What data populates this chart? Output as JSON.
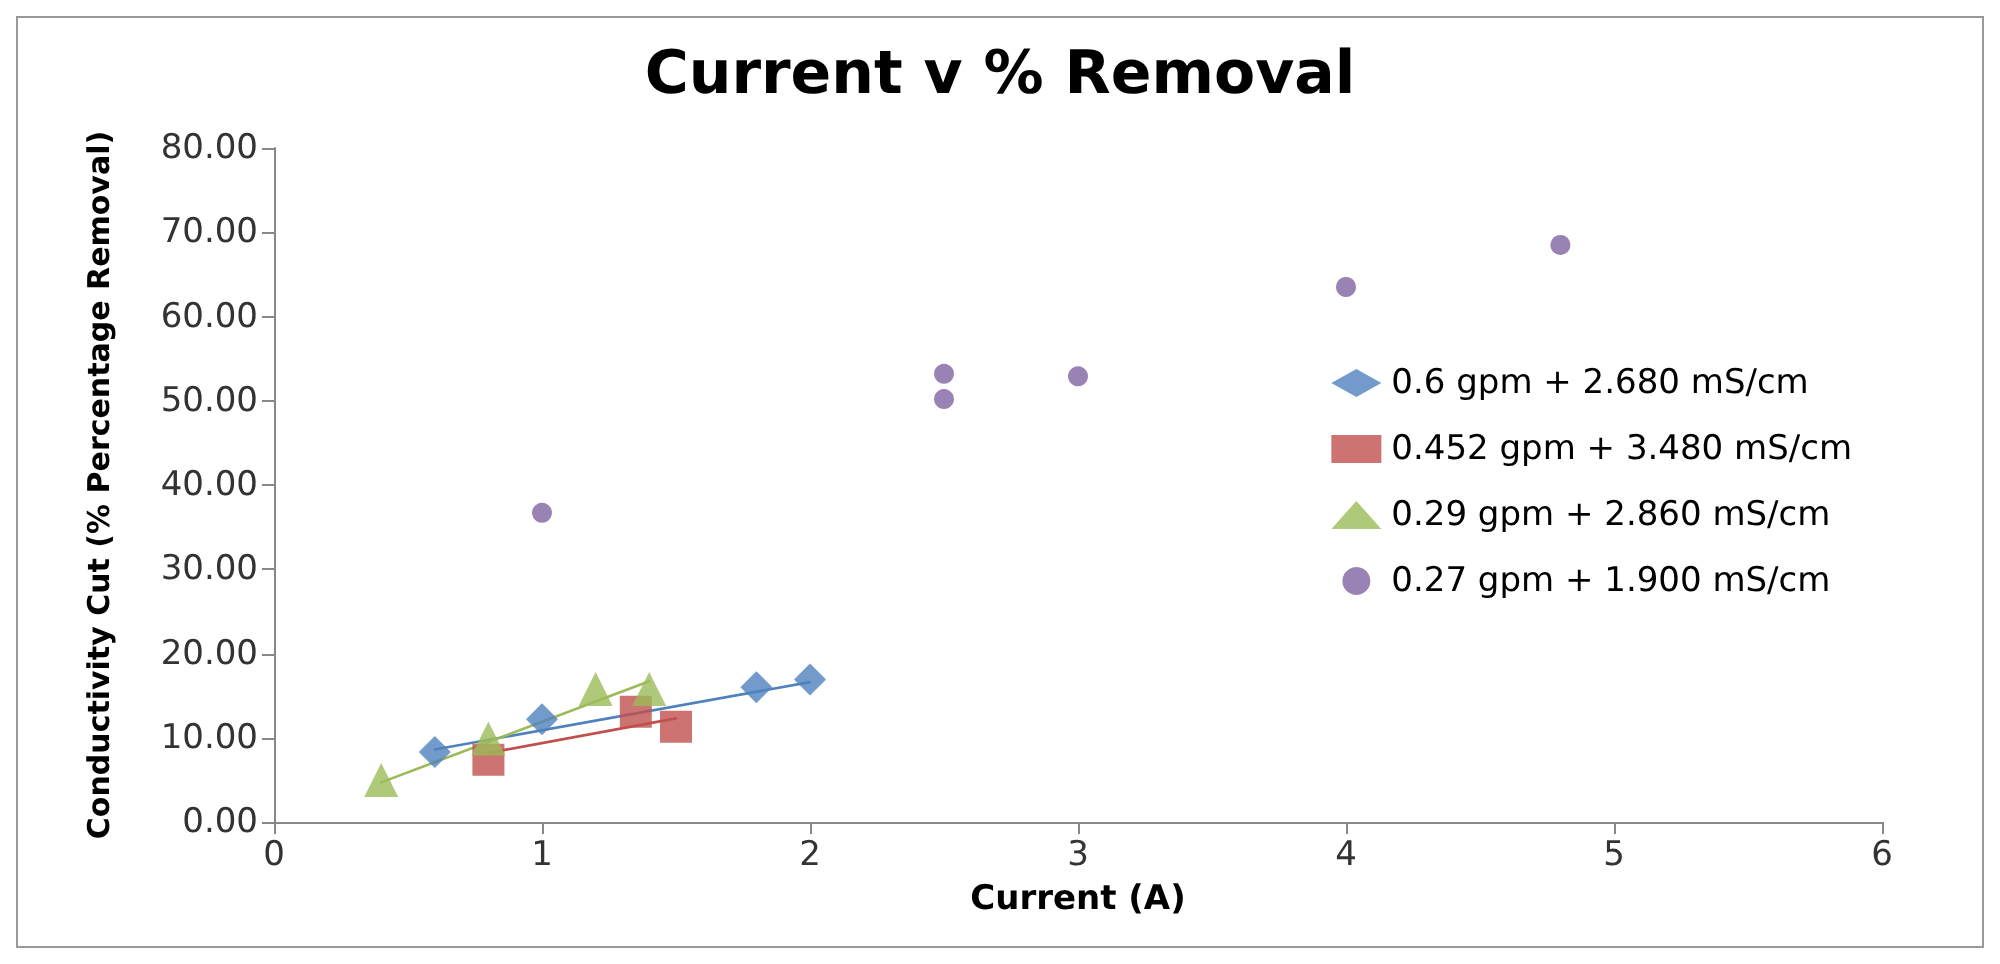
{
  "chart_data": {
    "type": "scatter",
    "title": "Current v % Removal",
    "xlabel": "Current (A)",
    "ylabel": "Conductivity Cut (% Percentage Removal)",
    "xlim": [
      0,
      6
    ],
    "xticks": [
      0,
      1,
      2,
      3,
      4,
      5,
      6
    ],
    "ylim": [
      0,
      80
    ],
    "yticks": [
      {
        "value": 0,
        "label": "0.00"
      },
      {
        "value": 10,
        "label": "10.00"
      },
      {
        "value": 20,
        "label": "20.00"
      },
      {
        "value": 30,
        "label": "30.00"
      },
      {
        "value": 40,
        "label": "40.00"
      },
      {
        "value": 50,
        "label": "50.00"
      },
      {
        "value": 60,
        "label": "60.00"
      },
      {
        "value": 70,
        "label": "70.00"
      },
      {
        "value": 80,
        "label": "80.00"
      }
    ],
    "grid": false,
    "legend": "right",
    "series": [
      {
        "name": "0.6 gpm + 2.680 mS/cm",
        "color": "#4f81bd",
        "marker": "diamond",
        "x": [
          0.6,
          1.0,
          1.8,
          2.0
        ],
        "values": [
          8.3,
          12.2,
          16.0,
          16.9
        ]
      },
      {
        "name": "0.452 gpm + 3.480 mS/cm",
        "color": "#c0504d",
        "marker": "square",
        "x": [
          0.8,
          1.35,
          1.5
        ],
        "values": [
          7.4,
          13.1,
          11.3
        ]
      },
      {
        "name": "0.29 gpm + 2.860 mS/cm",
        "color": "#9bbb59",
        "marker": "triangle",
        "x": [
          0.4,
          0.8,
          1.2,
          1.4
        ],
        "values": [
          5.0,
          9.9,
          15.8,
          15.8
        ]
      },
      {
        "name": "0.27 gpm + 1.900 mS/cm",
        "color": "#8064a2",
        "marker": "circle",
        "x": [
          1.0,
          2.5,
          2.5,
          3.0,
          4.0,
          4.8
        ],
        "values": [
          36.7,
          53.2,
          50.2,
          52.9,
          63.5,
          68.5
        ]
      },
      {
        "type": "line",
        "color": "#4f81bd",
        "marker": "none",
        "x": [
          0.6,
          2.0
        ],
        "values": [
          8.6,
          16.6
        ]
      },
      {
        "type": "line",
        "color": "#c0504d",
        "marker": "none",
        "x": [
          0.8,
          1.5
        ],
        "values": [
          8.2,
          12.3
        ]
      },
      {
        "type": "line",
        "color": "#9bbb59",
        "marker": "none",
        "x": [
          0.4,
          1.4
        ],
        "values": [
          4.7,
          16.7
        ]
      }
    ]
  }
}
